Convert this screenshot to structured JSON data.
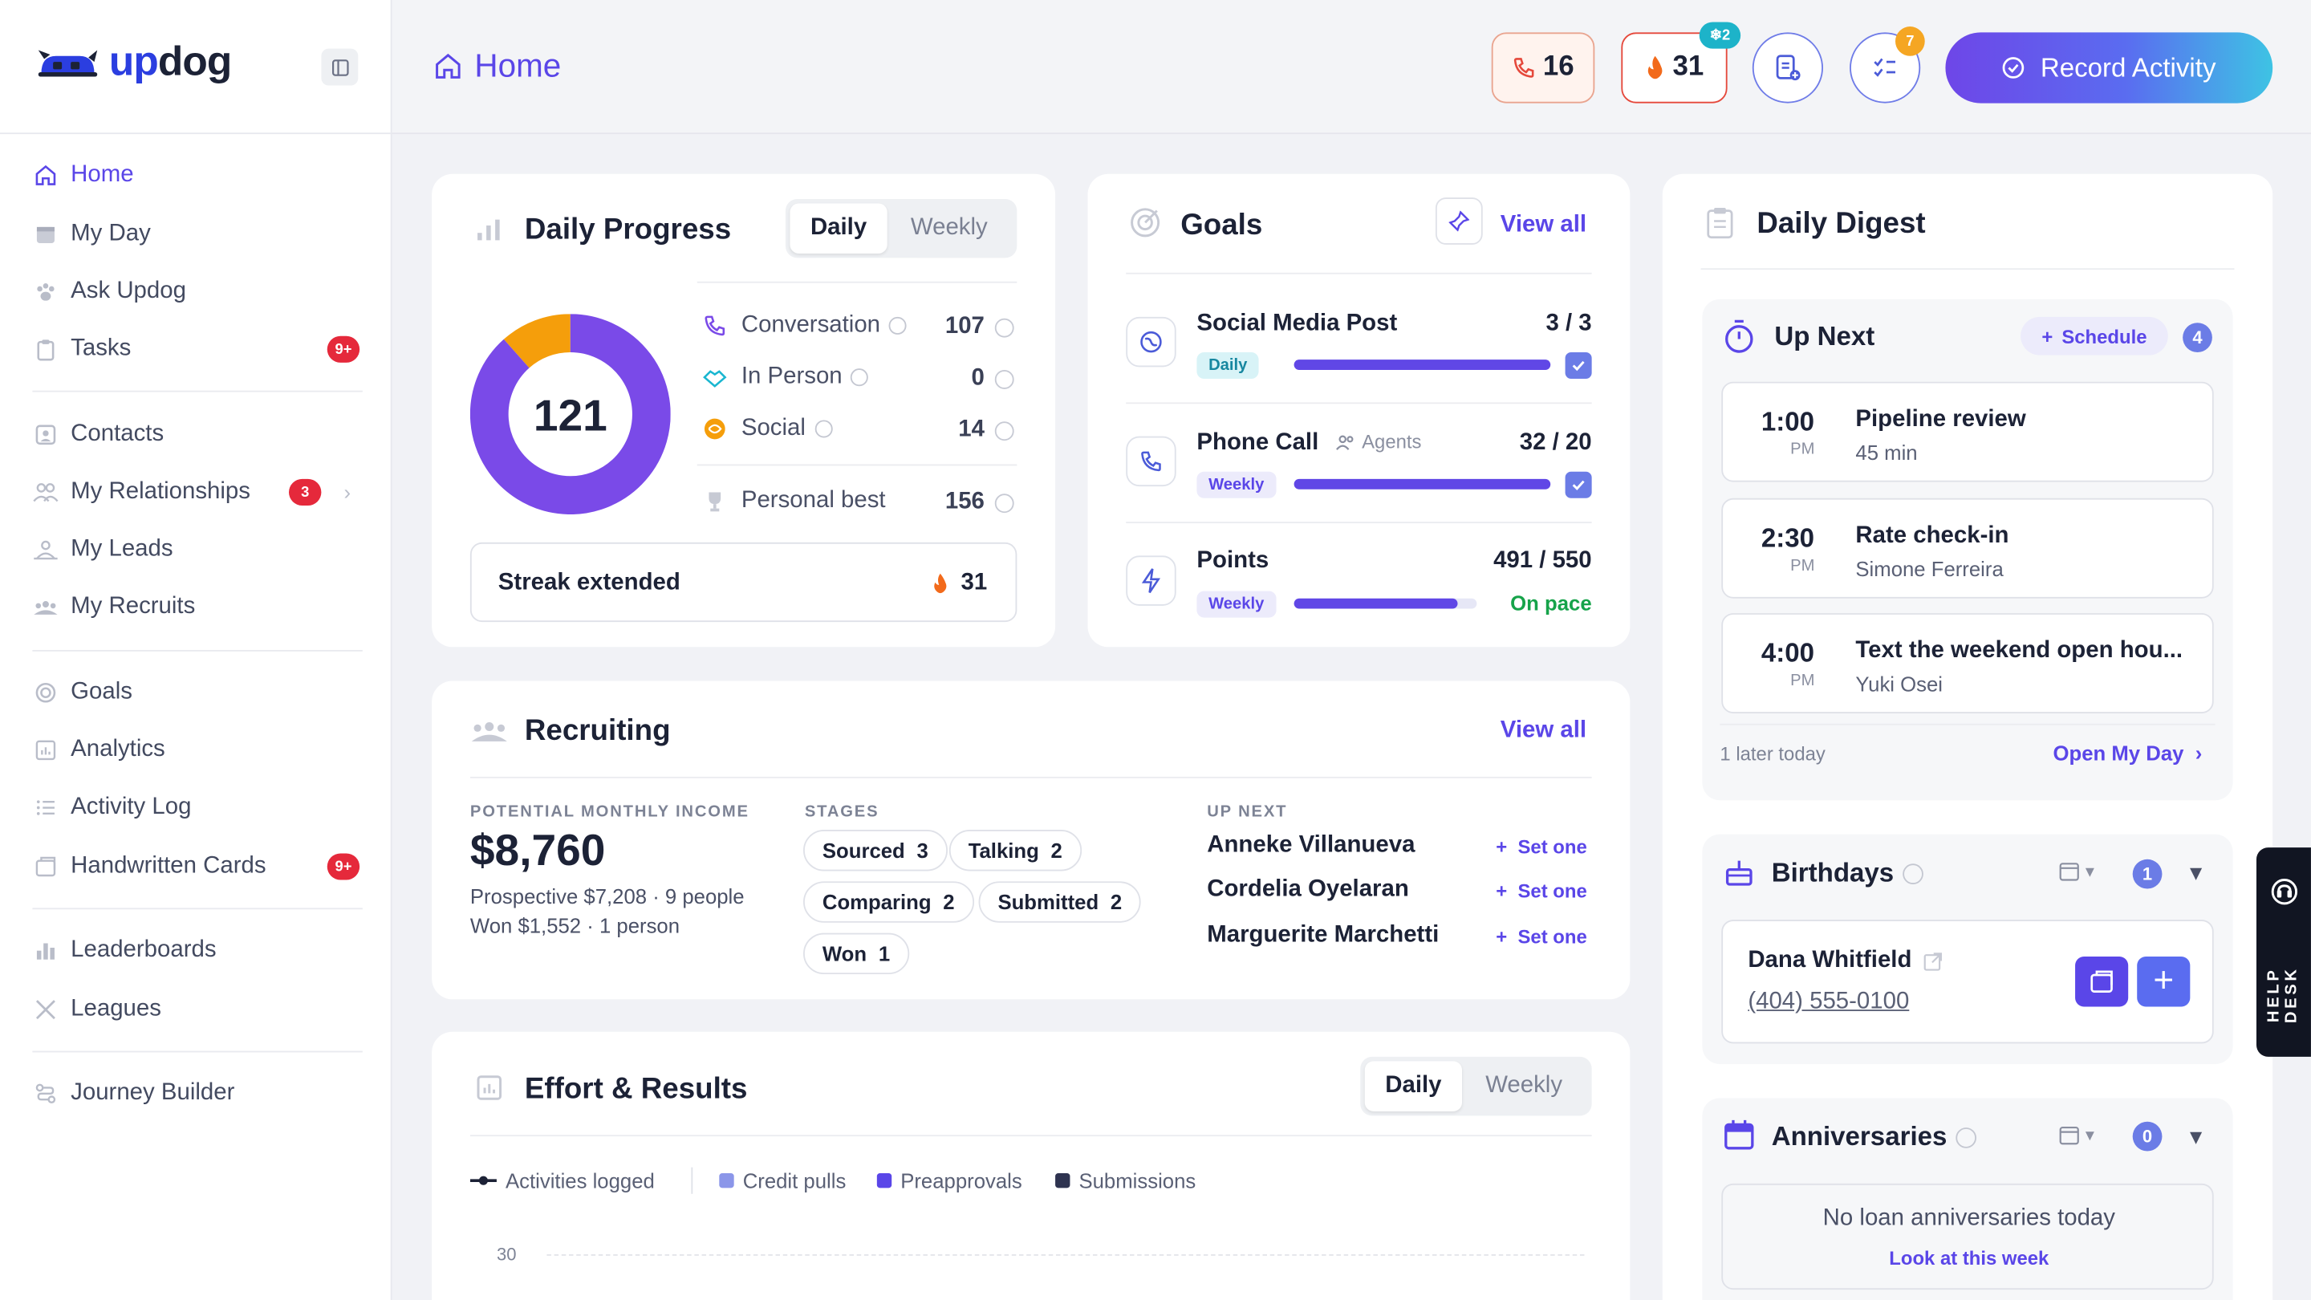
{
  "brand": {
    "name_a": "up",
    "name_b": "dog"
  },
  "sidebar": {
    "items": [
      {
        "label": "Home"
      },
      {
        "label": "My Day"
      },
      {
        "label": "Ask Updog"
      },
      {
        "label": "Tasks",
        "badge": "9+"
      },
      {
        "label": "Contacts"
      },
      {
        "label": "My Relationships",
        "badge": "3"
      },
      {
        "label": "My Leads"
      },
      {
        "label": "My Recruits"
      },
      {
        "label": "Goals"
      },
      {
        "label": "Analytics"
      },
      {
        "label": "Activity Log"
      },
      {
        "label": "Handwritten Cards",
        "badge": "9+"
      },
      {
        "label": "Leaderboards"
      },
      {
        "label": "Leagues"
      },
      {
        "label": "Journey Builder"
      }
    ]
  },
  "header": {
    "title": "Home",
    "calls_count": "16",
    "streak_count": "31",
    "streak_badge": "2",
    "tasks_badge": "7",
    "record_label": "Record Activity"
  },
  "daily_progress": {
    "title": "Daily Progress",
    "seg": [
      "Daily",
      "Weekly"
    ],
    "total": "121",
    "donut": {
      "conversation": 107,
      "social": 14
    },
    "stats": [
      {
        "label": "Conversation",
        "value": "107"
      },
      {
        "label": "In Person",
        "value": "0"
      },
      {
        "label": "Social",
        "value": "14"
      }
    ],
    "personal_best_label": "Personal best",
    "personal_best": "156",
    "streak_label": "Streak extended",
    "streak_value": "31"
  },
  "goals": {
    "title": "Goals",
    "view_all": "View all",
    "items": [
      {
        "name": "Social Media Post",
        "period": "Daily",
        "value": "3 / 3",
        "progress": 1.0
      },
      {
        "name": "Phone Call",
        "sub": "Agents",
        "period": "Weekly",
        "value": "32 / 20",
        "progress": 1.0
      },
      {
        "name": "Points",
        "period": "Weekly",
        "value": "491 / 550",
        "status": "On pace",
        "progress": 0.893
      }
    ]
  },
  "recruiting": {
    "title": "Recruiting",
    "view_all": "View all",
    "income_label": "POTENTIAL MONTHLY INCOME",
    "income": "$8,760",
    "prospective": "Prospective $7,208 · 9 people",
    "won": "Won $1,552 · 1 person",
    "stages_label": "STAGES",
    "stages": [
      {
        "name": "Sourced",
        "count": "3"
      },
      {
        "name": "Talking",
        "count": "2"
      },
      {
        "name": "Comparing",
        "count": "2"
      },
      {
        "name": "Submitted",
        "count": "2"
      },
      {
        "name": "Won",
        "count": "1"
      }
    ],
    "up_next_label": "UP NEXT",
    "up_next": [
      {
        "name": "Anneke Villanueva",
        "action": "Set one"
      },
      {
        "name": "Cordelia Oyelaran",
        "action": "Set one"
      },
      {
        "name": "Marguerite Marchetti",
        "action": "Set one"
      }
    ]
  },
  "effort": {
    "title": "Effort & Results",
    "seg": [
      "Daily",
      "Weekly"
    ],
    "legend": [
      "Activities logged",
      "Credit pulls",
      "Preapprovals",
      "Submissions"
    ],
    "y_tick": "30"
  },
  "digest": {
    "title": "Daily Digest",
    "up_next": {
      "title": "Up Next",
      "schedule": "Schedule",
      "count": "4",
      "events": [
        {
          "time": "1:00",
          "ampm": "PM",
          "title": "Pipeline review",
          "sub": "45 min"
        },
        {
          "time": "2:30",
          "ampm": "PM",
          "title": "Rate check-in",
          "sub": "Simone Ferreira"
        },
        {
          "time": "4:00",
          "ampm": "PM",
          "title": "Text the weekend open hou...",
          "sub": "Yuki Osei"
        }
      ],
      "later": "1 later today",
      "open_my_day": "Open My Day"
    },
    "birthdays": {
      "title": "Birthdays",
      "count": "1",
      "name": "Dana Whitfield",
      "phone": "(404) 555-0100"
    },
    "anniversaries": {
      "title": "Anniversaries",
      "count": "0",
      "empty": "No loan anniversaries today",
      "link": "Look at this week"
    }
  },
  "help_desk": "HELP DESK",
  "colors": {
    "accent": "#5a46e8",
    "badge": "#e5293b",
    "donut_main": "#7a4ae8",
    "donut_social": "#f59e0b"
  }
}
